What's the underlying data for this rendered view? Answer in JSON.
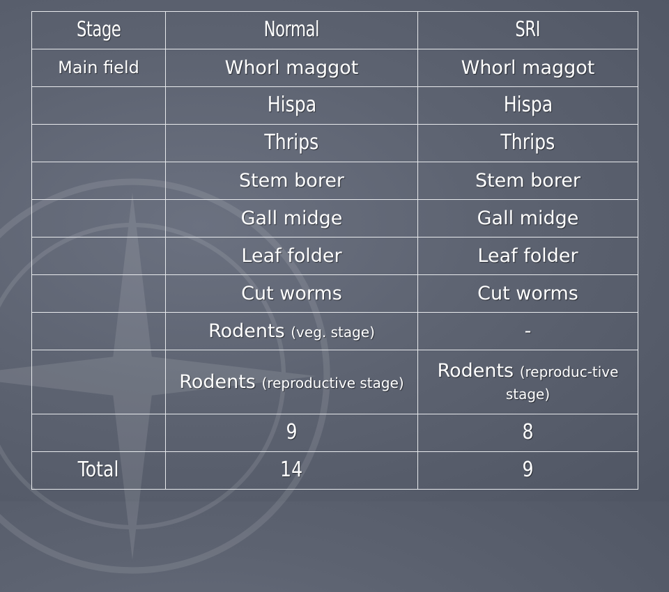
{
  "table": {
    "headers": [
      "Stage",
      "Normal",
      "SRI"
    ],
    "rows": [
      {
        "stage": "Main field",
        "normal": "Whorl maggot",
        "sri": "Whorl maggot"
      },
      {
        "stage": "",
        "normal": "Hispa",
        "sri": "Hispa"
      },
      {
        "stage": "",
        "normal": "Thrips",
        "sri": "Thrips"
      },
      {
        "stage": "",
        "normal": "Stem borer",
        "sri": "Stem borer"
      },
      {
        "stage": "",
        "normal": "Gall midge",
        "sri": "Gall midge"
      },
      {
        "stage": "",
        "normal": "Leaf folder",
        "sri": "Leaf folder"
      },
      {
        "stage": "",
        "normal": "Cut worms",
        "sri": "Cut worms"
      },
      {
        "stage": "",
        "normal_main": "Rodents",
        "normal_sub": "(veg. stage)",
        "sri": "-"
      },
      {
        "stage": "",
        "normal_main": "Rodents",
        "normal_sub": "(reproductive stage)",
        "sri_main": "Rodents",
        "sri_sub": "(reproduc-tive stage)"
      },
      {
        "stage": "",
        "normal": "9",
        "sri": "8"
      },
      {
        "stage": "Total",
        "normal": "14",
        "sri": "9"
      }
    ]
  }
}
